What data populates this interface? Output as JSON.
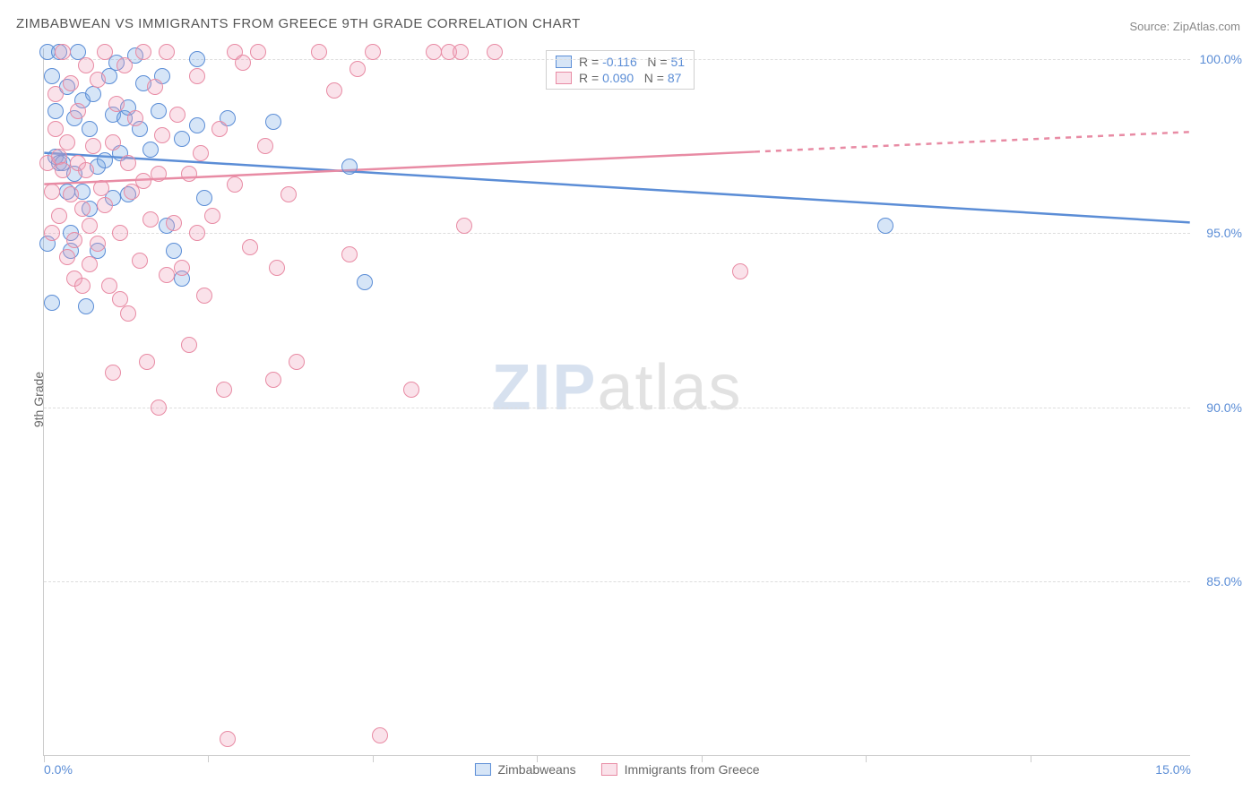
{
  "title": "ZIMBABWEAN VS IMMIGRANTS FROM GREECE 9TH GRADE CORRELATION CHART",
  "source": "Source: ZipAtlas.com",
  "y_axis_label": "9th Grade",
  "watermark_left": "ZIP",
  "watermark_right": "atlas",
  "chart": {
    "type": "scatter",
    "background_color": "#ffffff",
    "grid_color": "#dddddd",
    "axis_color": "#cccccc",
    "xlim": [
      0.0,
      15.0
    ],
    "ylim": [
      80.0,
      100.3
    ],
    "xtick_positions": [
      0.0,
      2.15,
      4.3,
      6.45,
      8.6,
      10.75,
      12.9
    ],
    "xtick_labels_shown": {
      "0": "0.0%",
      "15": "15.0%"
    },
    "ytick_positions": [
      85.0,
      90.0,
      95.0,
      100.0
    ],
    "ytick_labels": {
      "85": "85.0%",
      "90": "90.0%",
      "95": "95.0%",
      "100": "100.0%"
    },
    "marker_radius": 9,
    "marker_stroke_width": 1.5,
    "marker_fill_opacity": 0.25,
    "line_width": 2.5,
    "series": [
      {
        "key": "zimbabweans",
        "label": "Zimbabweans",
        "color_stroke": "#5b8dd6",
        "color_fill": "rgba(120,170,230,0.30)",
        "R_value": "-0.116",
        "N_value": "51",
        "trend": {
          "x1": 0.0,
          "y1": 97.3,
          "x2": 15.0,
          "y2": 95.3,
          "dash_from_x": null
        },
        "points": [
          [
            0.05,
            100.2
          ],
          [
            0.1,
            99.5
          ],
          [
            0.15,
            98.5
          ],
          [
            0.15,
            97.2
          ],
          [
            0.2,
            100.2
          ],
          [
            0.2,
            97.0
          ],
          [
            0.25,
            97.0
          ],
          [
            0.3,
            99.2
          ],
          [
            0.3,
            96.2
          ],
          [
            0.35,
            95.0
          ],
          [
            0.35,
            94.5
          ],
          [
            0.4,
            98.3
          ],
          [
            0.4,
            96.7
          ],
          [
            0.45,
            100.2
          ],
          [
            0.5,
            98.8
          ],
          [
            0.5,
            96.2
          ],
          [
            0.55,
            92.9
          ],
          [
            0.6,
            98.0
          ],
          [
            0.6,
            95.7
          ],
          [
            0.65,
            99.0
          ],
          [
            0.7,
            96.9
          ],
          [
            0.7,
            94.5
          ],
          [
            0.8,
            97.1
          ],
          [
            0.85,
            99.5
          ],
          [
            0.9,
            98.4
          ],
          [
            0.9,
            96.0
          ],
          [
            0.95,
            99.9
          ],
          [
            1.0,
            97.3
          ],
          [
            1.05,
            98.3
          ],
          [
            1.1,
            98.6
          ],
          [
            1.1,
            96.1
          ],
          [
            1.2,
            100.1
          ],
          [
            1.25,
            98.0
          ],
          [
            1.3,
            99.3
          ],
          [
            1.4,
            97.4
          ],
          [
            1.5,
            98.5
          ],
          [
            1.55,
            99.5
          ],
          [
            1.6,
            95.2
          ],
          [
            1.7,
            94.5
          ],
          [
            1.8,
            97.7
          ],
          [
            1.8,
            93.7
          ],
          [
            2.0,
            100.0
          ],
          [
            2.0,
            98.1
          ],
          [
            2.1,
            96.0
          ],
          [
            2.4,
            98.3
          ],
          [
            3.0,
            98.2
          ],
          [
            4.0,
            96.9
          ],
          [
            4.2,
            93.6
          ],
          [
            11.0,
            95.2
          ],
          [
            0.05,
            94.7
          ],
          [
            0.1,
            93.0
          ]
        ]
      },
      {
        "key": "greece",
        "label": "Immigrants from Greece",
        "color_stroke": "#e88ba4",
        "color_fill": "rgba(240,160,185,0.30)",
        "R_value": "0.090",
        "N_value": "87",
        "trend": {
          "x1": 0.0,
          "y1": 96.4,
          "x2": 15.0,
          "y2": 97.9,
          "dash_from_x": 9.3
        },
        "points": [
          [
            0.05,
            97.0
          ],
          [
            0.1,
            96.2
          ],
          [
            0.1,
            95.0
          ],
          [
            0.15,
            99.0
          ],
          [
            0.15,
            98.0
          ],
          [
            0.2,
            97.2
          ],
          [
            0.2,
            95.5
          ],
          [
            0.25,
            100.2
          ],
          [
            0.25,
            96.8
          ],
          [
            0.3,
            94.3
          ],
          [
            0.3,
            97.6
          ],
          [
            0.35,
            99.3
          ],
          [
            0.35,
            96.1
          ],
          [
            0.4,
            94.8
          ],
          [
            0.4,
            93.7
          ],
          [
            0.45,
            98.5
          ],
          [
            0.45,
            97.0
          ],
          [
            0.5,
            95.7
          ],
          [
            0.5,
            93.5
          ],
          [
            0.55,
            99.8
          ],
          [
            0.55,
            96.8
          ],
          [
            0.6,
            95.2
          ],
          [
            0.6,
            94.1
          ],
          [
            0.65,
            97.5
          ],
          [
            0.7,
            99.4
          ],
          [
            0.7,
            94.7
          ],
          [
            0.75,
            96.3
          ],
          [
            0.8,
            100.2
          ],
          [
            0.8,
            95.8
          ],
          [
            0.85,
            93.5
          ],
          [
            0.9,
            97.6
          ],
          [
            0.9,
            91.0
          ],
          [
            0.95,
            98.7
          ],
          [
            1.0,
            95.0
          ],
          [
            1.0,
            93.1
          ],
          [
            1.05,
            99.8
          ],
          [
            1.1,
            97.0
          ],
          [
            1.1,
            92.7
          ],
          [
            1.15,
            96.2
          ],
          [
            1.2,
            98.3
          ],
          [
            1.25,
            94.2
          ],
          [
            1.3,
            100.2
          ],
          [
            1.3,
            96.5
          ],
          [
            1.35,
            91.3
          ],
          [
            1.4,
            95.4
          ],
          [
            1.45,
            99.2
          ],
          [
            1.5,
            90.0
          ],
          [
            1.5,
            96.7
          ],
          [
            1.55,
            97.8
          ],
          [
            1.6,
            93.8
          ],
          [
            1.6,
            100.2
          ],
          [
            1.7,
            95.3
          ],
          [
            1.75,
            98.4
          ],
          [
            1.8,
            94.0
          ],
          [
            1.9,
            96.7
          ],
          [
            1.9,
            91.8
          ],
          [
            2.0,
            99.5
          ],
          [
            2.05,
            97.3
          ],
          [
            2.1,
            93.2
          ],
          [
            2.2,
            95.5
          ],
          [
            2.3,
            98.0
          ],
          [
            2.35,
            90.5
          ],
          [
            2.4,
            80.5
          ],
          [
            2.5,
            96.4
          ],
          [
            2.5,
            100.2
          ],
          [
            2.6,
            99.9
          ],
          [
            2.7,
            94.6
          ],
          [
            2.8,
            100.2
          ],
          [
            2.9,
            97.5
          ],
          [
            3.0,
            90.8
          ],
          [
            3.05,
            94.0
          ],
          [
            3.2,
            96.1
          ],
          [
            3.3,
            91.3
          ],
          [
            3.6,
            100.2
          ],
          [
            3.8,
            99.1
          ],
          [
            4.0,
            94.4
          ],
          [
            4.1,
            99.7
          ],
          [
            4.3,
            100.2
          ],
          [
            4.4,
            80.6
          ],
          [
            4.8,
            90.5
          ],
          [
            5.1,
            100.2
          ],
          [
            5.3,
            100.2
          ],
          [
            5.45,
            100.2
          ],
          [
            5.5,
            95.2
          ],
          [
            5.9,
            100.2
          ],
          [
            9.1,
            93.9
          ],
          [
            2.0,
            95.0
          ]
        ]
      }
    ]
  },
  "legend_top": {
    "R_label": "R  =",
    "N_label": "N  ="
  },
  "colors": {
    "text_muted": "#666666",
    "text_value": "#5b8dd6"
  }
}
